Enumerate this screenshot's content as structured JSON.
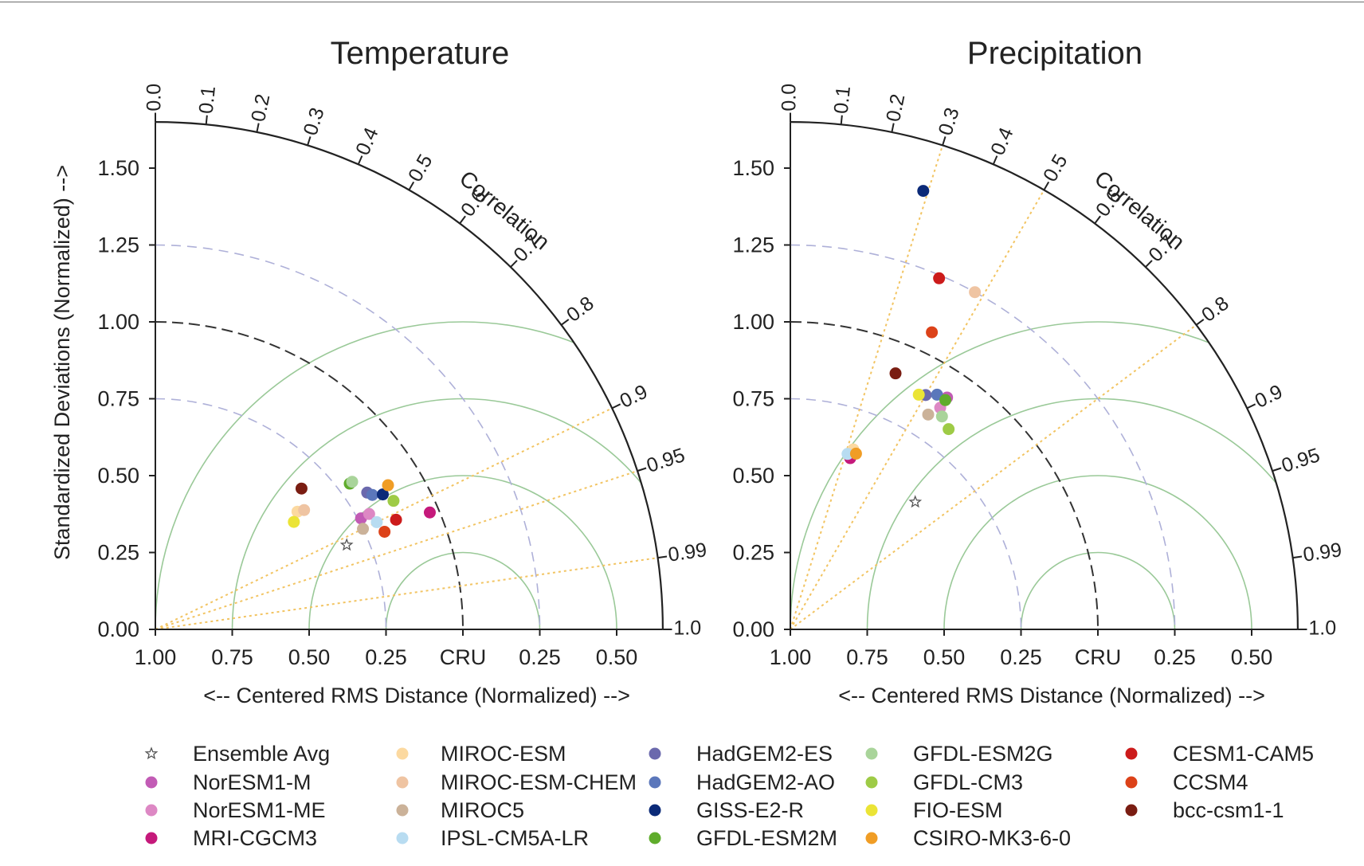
{
  "chart_data": [
    {
      "type": "taylor",
      "title": "Temperature",
      "ylabel": "Standardized Deviations (Normalized) -->",
      "xlabel": "<-- Centered RMS Distance (Normalized) -->",
      "reference_label": "CRU",
      "correlation_label": "Correlation",
      "std_ticks": [
        "0.00",
        "0.25",
        "0.50",
        "0.75",
        "1.00",
        "1.25",
        "1.50"
      ],
      "x_tick_labels": [
        "1.00",
        "0.75",
        "0.50",
        "0.25",
        "CRU",
        "0.25",
        "0.50"
      ],
      "corr_ticks": [
        "0.0",
        "0.1",
        "0.2",
        "0.3",
        "0.4",
        "0.5",
        "0.6",
        "0.7",
        "0.8",
        "0.9",
        "0.95",
        "0.99",
        "1.0"
      ],
      "xlim": [
        0,
        1.65
      ],
      "ylim": [
        0,
        1.65
      ],
      "points": [
        {
          "model": "Ensemble Avg",
          "std": 0.68,
          "corr": 0.915
        },
        {
          "model": "NorESM1-M",
          "std": 0.76,
          "corr": 0.88
        },
        {
          "model": "NorESM1-ME",
          "std": 0.79,
          "corr": 0.88
        },
        {
          "model": "MRI-CGCM3",
          "std": 0.97,
          "corr": 0.92
        },
        {
          "model": "MIROC-ESM",
          "std": 0.6,
          "corr": 0.77
        },
        {
          "model": "MIROC-ESM-CHEM",
          "std": 0.62,
          "corr": 0.78
        },
        {
          "model": "MIROC5",
          "std": 0.75,
          "corr": 0.9
        },
        {
          "model": "IPSL-CM5A-LR",
          "std": 0.8,
          "corr": 0.9
        },
        {
          "model": "HadGEM2-ES",
          "std": 0.82,
          "corr": 0.84
        },
        {
          "model": "HadGEM2-AO",
          "std": 0.83,
          "corr": 0.85
        },
        {
          "model": "GISS-E2-R",
          "std": 0.86,
          "corr": 0.86
        },
        {
          "model": "GFDL-ESM2M",
          "std": 0.79,
          "corr": 0.8
        },
        {
          "model": "GFDL-ESM2G",
          "std": 0.8,
          "corr": 0.8
        },
        {
          "model": "GFDL-CM3",
          "std": 0.88,
          "corr": 0.88
        },
        {
          "model": "FIO-ESM",
          "std": 0.57,
          "corr": 0.79
        },
        {
          "model": "CSIRO-MK3-6-0",
          "std": 0.89,
          "corr": 0.85
        },
        {
          "model": "CESM1-CAM5",
          "std": 0.86,
          "corr": 0.91
        },
        {
          "model": "CCSM4",
          "std": 0.81,
          "corr": 0.92
        },
        {
          "model": "bcc-csm1-1",
          "std": 0.66,
          "corr": 0.72
        }
      ]
    },
    {
      "type": "taylor",
      "title": "Precipitation",
      "ylabel": "",
      "xlabel": "<-- Centered RMS Distance (Normalized) -->",
      "reference_label": "CRU",
      "correlation_label": "Correlation",
      "std_ticks": [
        "0.00",
        "0.25",
        "0.50",
        "0.75",
        "1.00",
        "1.25",
        "1.50"
      ],
      "x_tick_labels": [
        "1.00",
        "0.75",
        "0.50",
        "0.25",
        "CRU",
        "0.25",
        "0.50"
      ],
      "corr_ticks": [
        "0.0",
        "0.1",
        "0.2",
        "0.3",
        "0.4",
        "0.5",
        "0.6",
        "0.7",
        "0.8",
        "0.9",
        "0.95",
        "0.99",
        "1.0"
      ],
      "xlim": [
        0,
        1.65
      ],
      "ylim": [
        0,
        1.65
      ],
      "points": [
        {
          "model": "Ensemble Avg",
          "std": 0.58,
          "corr": 0.7
        },
        {
          "model": "NorESM1-M",
          "std": 0.91,
          "corr": 0.56
        },
        {
          "model": "NorESM1-ME",
          "std": 0.87,
          "corr": 0.56
        },
        {
          "model": "MRI-CGCM3",
          "std": 0.59,
          "corr": 0.33
        },
        {
          "model": "MIROC-ESM",
          "std": 0.62,
          "corr": 0.33
        },
        {
          "model": "MIROC-ESM-CHEM",
          "std": 1.25,
          "corr": 0.48
        },
        {
          "model": "MIROC5",
          "std": 0.83,
          "corr": 0.54
        },
        {
          "model": "IPSL-CM5A-LR",
          "std": 0.6,
          "corr": 0.31
        },
        {
          "model": "HadGEM2-ES",
          "std": 0.88,
          "corr": 0.5
        },
        {
          "model": "HadGEM2-AO",
          "std": 0.9,
          "corr": 0.53
        },
        {
          "model": "GISS-E2-R",
          "std": 1.49,
          "corr": 0.29
        },
        {
          "model": "GFDL-ESM2M",
          "std": 0.9,
          "corr": 0.56
        },
        {
          "model": "GFDL-ESM2G",
          "std": 0.85,
          "corr": 0.58
        },
        {
          "model": "GFDL-CM3",
          "std": 0.83,
          "corr": 0.62
        },
        {
          "model": "FIO-ESM",
          "std": 0.87,
          "corr": 0.48
        },
        {
          "model": "CSIRO-MK3-6-0",
          "std": 0.61,
          "corr": 0.35
        },
        {
          "model": "CESM1-CAM5",
          "std": 1.24,
          "corr": 0.39
        },
        {
          "model": "CCSM4",
          "std": 1.07,
          "corr": 0.43
        },
        {
          "model": "bcc-csm1-1",
          "std": 0.9,
          "corr": 0.38
        }
      ]
    }
  ],
  "legend": [
    {
      "label": "Ensemble Avg",
      "color": "#888888",
      "marker": "star"
    },
    {
      "label": "NorESM1-M",
      "color": "#c25bb5",
      "marker": "dot"
    },
    {
      "label": "NorESM1-ME",
      "color": "#dd88c4",
      "marker": "dot"
    },
    {
      "label": "MRI-CGCM3",
      "color": "#c5197b",
      "marker": "dot"
    },
    {
      "label": "MIROC-ESM",
      "color": "#fcd9a0",
      "marker": "dot"
    },
    {
      "label": "MIROC-ESM-CHEM",
      "color": "#efc4a2",
      "marker": "dot"
    },
    {
      "label": "MIROC5",
      "color": "#cbb299",
      "marker": "dot"
    },
    {
      "label": "IPSL-CM5A-LR",
      "color": "#b8dcf1",
      "marker": "dot"
    },
    {
      "label": "HadGEM2-ES",
      "color": "#6b69ad",
      "marker": "dot"
    },
    {
      "label": "HadGEM2-AO",
      "color": "#5b77bb",
      "marker": "dot"
    },
    {
      "label": "GISS-E2-R",
      "color": "#0b2a78",
      "marker": "dot"
    },
    {
      "label": "GFDL-ESM2M",
      "color": "#5fac2b",
      "marker": "dot"
    },
    {
      "label": "GFDL-ESM2G",
      "color": "#a9d49a",
      "marker": "dot"
    },
    {
      "label": "GFDL-CM3",
      "color": "#9ecb46",
      "marker": "dot"
    },
    {
      "label": "FIO-ESM",
      "color": "#ebe436",
      "marker": "dot"
    },
    {
      "label": "CSIRO-MK3-6-0",
      "color": "#f09d25",
      "marker": "dot"
    },
    {
      "label": "CESM1-CAM5",
      "color": "#cc1b1b",
      "marker": "dot"
    },
    {
      "label": "CCSM4",
      "color": "#dc4219",
      "marker": "dot"
    },
    {
      "label": "bcc-csm1-1",
      "color": "#7a1d12",
      "marker": "dot"
    }
  ],
  "style": {
    "rms_contour_color": "#9ac998",
    "std_arc_color": "#aeb0d8",
    "reference_arc_color": "#333333",
    "corr_ray_color": "#f2c462"
  }
}
